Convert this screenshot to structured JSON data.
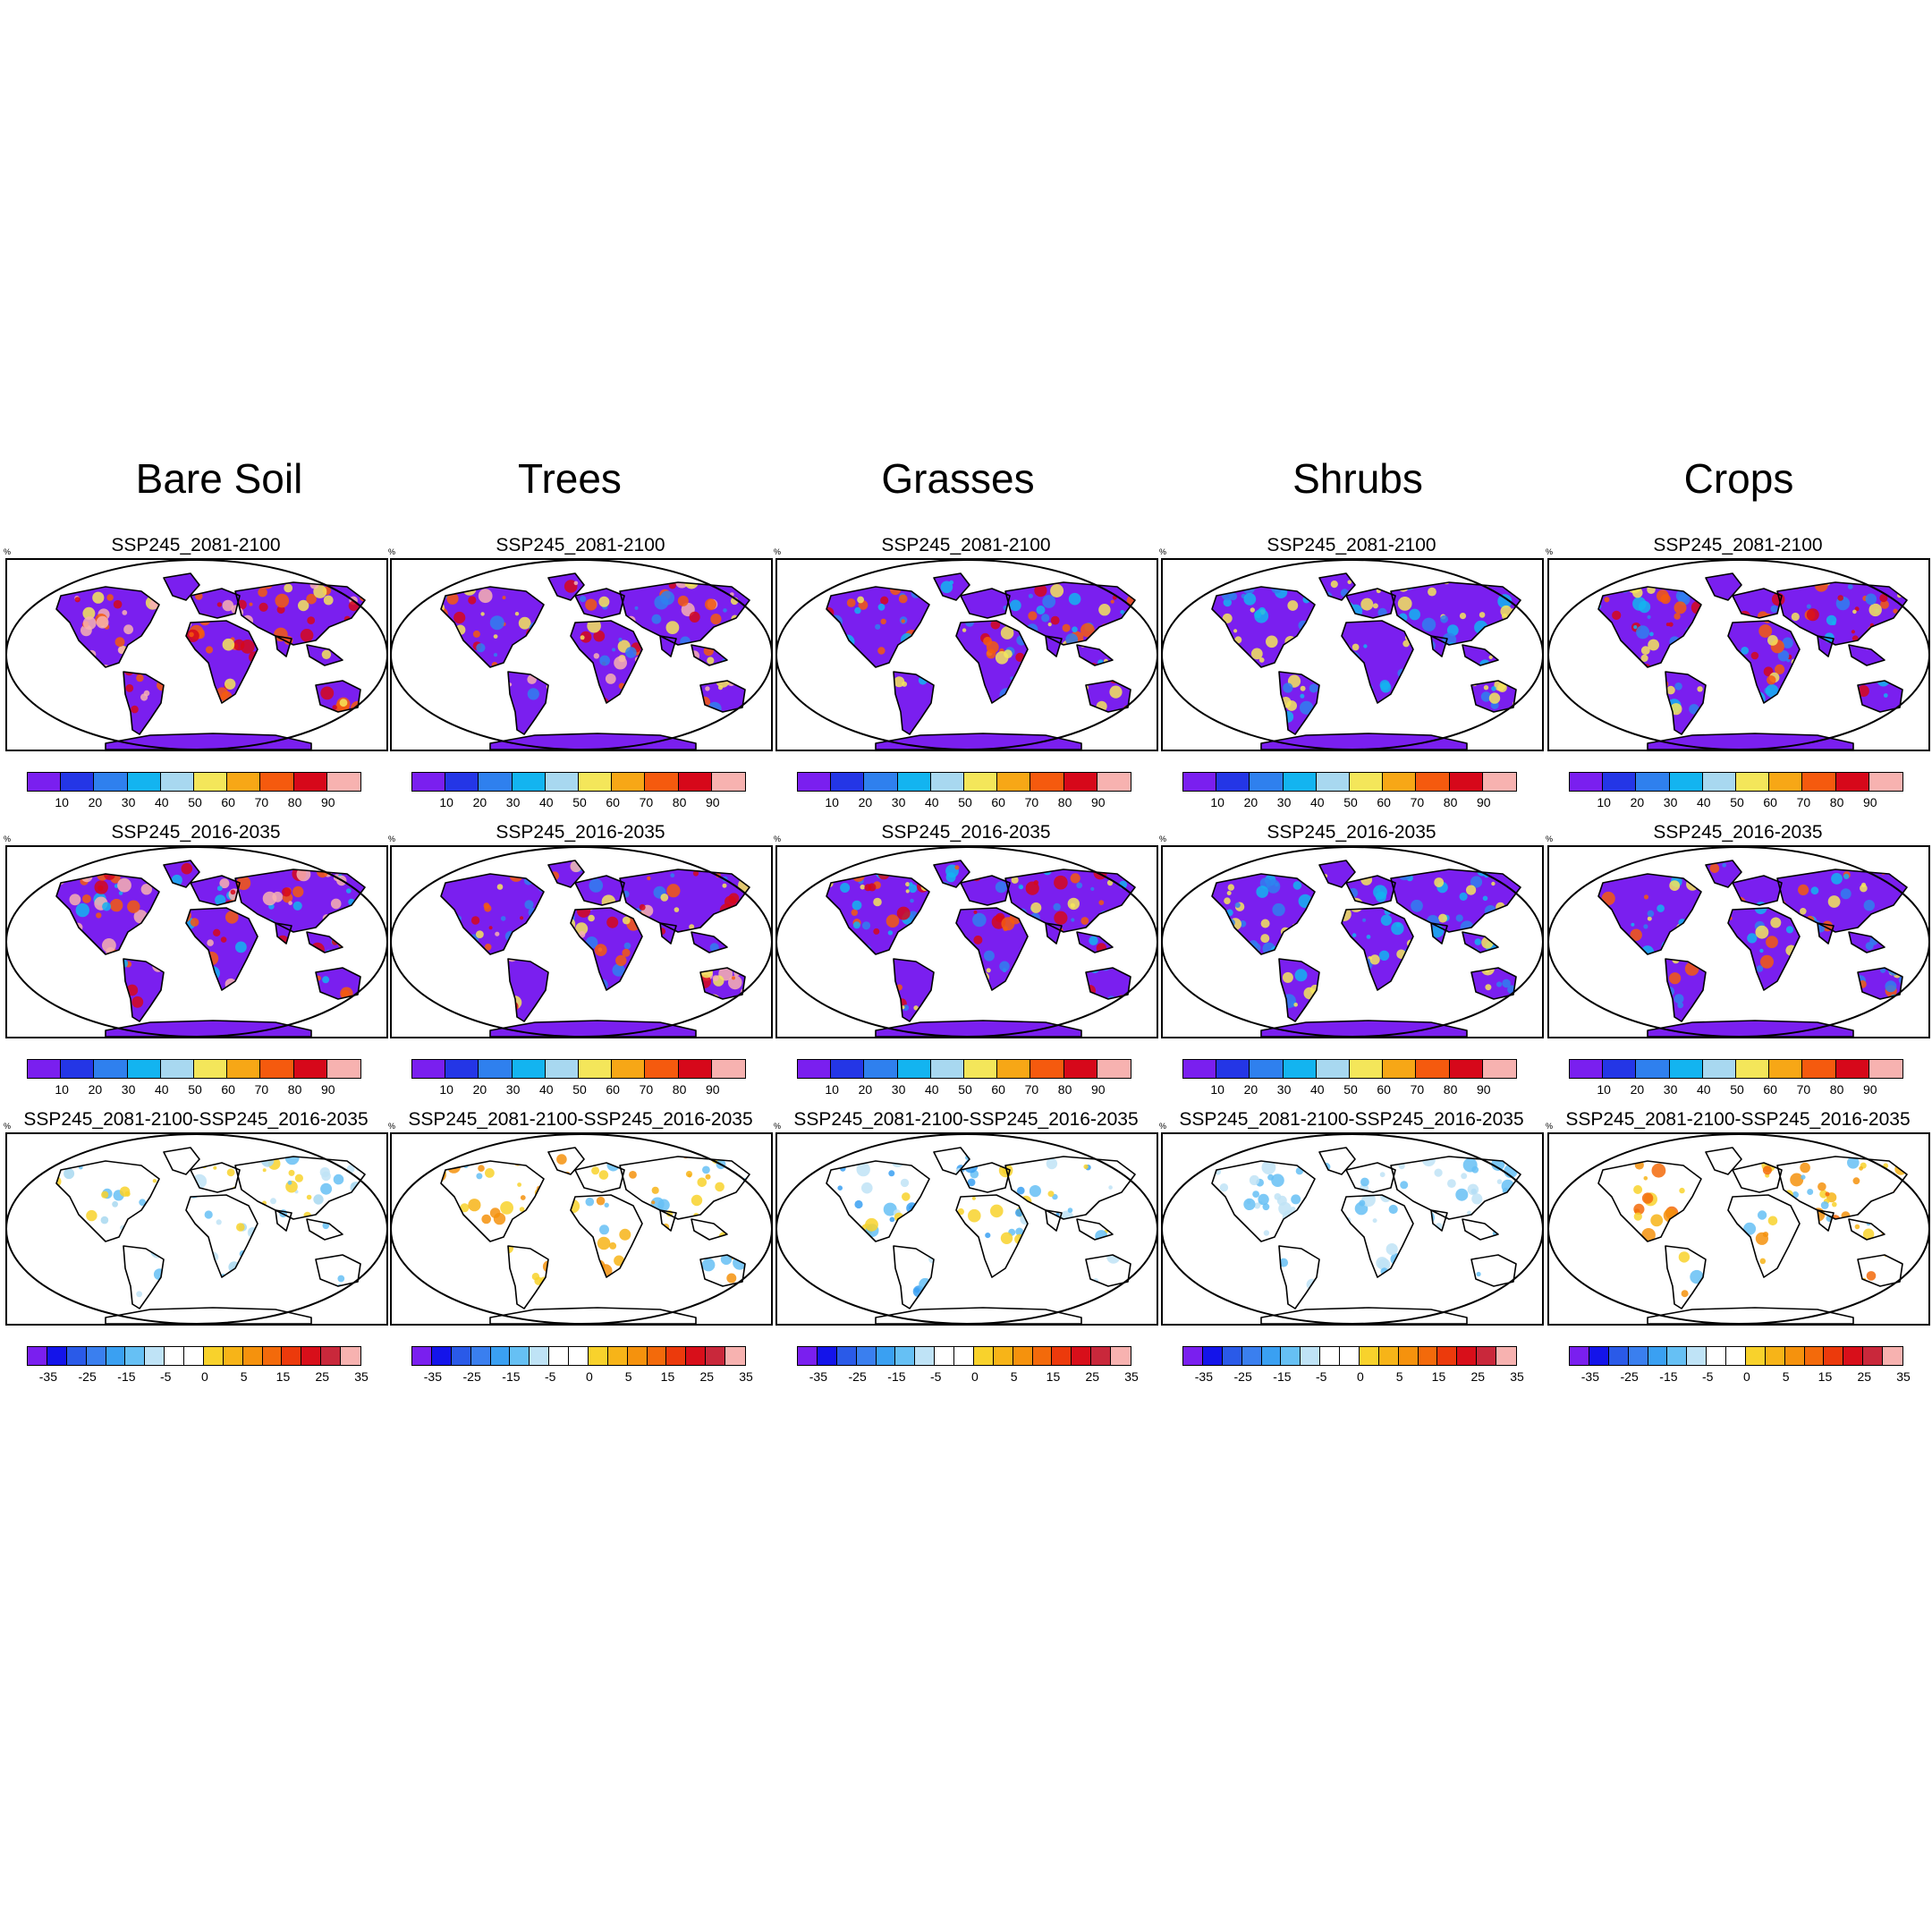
{
  "columns": [
    {
      "title": "Bare Soil",
      "key": "bare"
    },
    {
      "title": "Trees",
      "key": "trees"
    },
    {
      "title": "Grasses",
      "key": "grass"
    },
    {
      "title": "Shrubs",
      "key": "shrub"
    },
    {
      "title": "Crops",
      "key": "crops"
    }
  ],
  "rows": [
    {
      "panel_title": "SSP245_2081-2100",
      "type": "absolute"
    },
    {
      "panel_title": "SSP245_2016-2035",
      "type": "absolute"
    },
    {
      "panel_title": "SSP245_2081-2100-SSP245_2016-2035",
      "type": "difference"
    }
  ],
  "unit_label": "%",
  "colorbars": {
    "absolute": {
      "colors": [
        "#7a1fef",
        "#2436e6",
        "#2f80ee",
        "#13b4f0",
        "#a8d8f0",
        "#f4e65a",
        "#f7a716",
        "#f55a0e",
        "#d6081a",
        "#f7b2b0"
      ],
      "tick_labels": [
        "10",
        "20",
        "30",
        "40",
        "50",
        "60",
        "70",
        "80",
        "90"
      ]
    },
    "difference": {
      "colors": [
        "#7a1fef",
        "#1414ea",
        "#2a5ae8",
        "#3a7fef",
        "#3aa0f2",
        "#66c0f4",
        "#bfe3f6",
        "#ffffff",
        "#ffffff",
        "#f8d22c",
        "#f7b418",
        "#f5920d",
        "#f36a0b",
        "#ec3a0c",
        "#d80f1a",
        "#c9283b",
        "#f7b2b0"
      ],
      "tick_labels": [
        "-35",
        "-25",
        "-15",
        "-5",
        "0",
        "5",
        "15",
        "25",
        "35"
      ]
    }
  },
  "maps": {
    "bare": {
      "r0": {
        "base": "#7a1fef",
        "hot": [
          "#f7b2b0",
          "#d6081a",
          "#f55a0e",
          "#f4e65a"
        ]
      },
      "r1": {
        "base": "#7a1fef",
        "hot": [
          "#f7b2b0",
          "#d6081a",
          "#f55a0e",
          "#13b4f0"
        ]
      },
      "r2": {
        "hot": [
          "#a8d8f0",
          "#bfe3f6",
          "#66c0f4",
          "#f8d22c"
        ]
      }
    },
    "trees": {
      "r0": {
        "base": "#7a1fef",
        "hot": [
          "#f7b2b0",
          "#d6081a",
          "#f55a0e",
          "#f4e65a",
          "#2f80ee"
        ]
      },
      "r1": {
        "base": "#7a1fef",
        "hot": [
          "#f7b2b0",
          "#d6081a",
          "#f55a0e",
          "#f4e65a",
          "#2f80ee"
        ]
      },
      "r2": {
        "hot": [
          "#f7b418",
          "#f5920d",
          "#f8d22c",
          "#66c0f4"
        ]
      }
    },
    "grass": {
      "r0": {
        "base": "#7a1fef",
        "hot": [
          "#13b4f0",
          "#2f80ee",
          "#f4e65a",
          "#f55a0e",
          "#d6081a"
        ]
      },
      "r1": {
        "base": "#7a1fef",
        "hot": [
          "#13b4f0",
          "#2f80ee",
          "#f4e65a",
          "#f55a0e",
          "#d6081a"
        ]
      },
      "r2": {
        "hot": [
          "#3aa0f2",
          "#66c0f4",
          "#bfe3f6",
          "#f8d22c"
        ]
      }
    },
    "shrub": {
      "r0": {
        "base": "#7a1fef",
        "hot": [
          "#13b4f0",
          "#2f80ee",
          "#f4e65a"
        ]
      },
      "r1": {
        "base": "#7a1fef",
        "hot": [
          "#13b4f0",
          "#2f80ee",
          "#f4e65a"
        ]
      },
      "r2": {
        "hot": [
          "#bfe3f6",
          "#66c0f4"
        ]
      }
    },
    "crops": {
      "r0": {
        "base": "#7a1fef",
        "hot": [
          "#f55a0e",
          "#f4e65a",
          "#13b4f0",
          "#2f80ee",
          "#d6081a"
        ]
      },
      "r1": {
        "base": "#7a1fef",
        "hot": [
          "#f55a0e",
          "#f4e65a",
          "#13b4f0",
          "#2f80ee"
        ]
      },
      "r2": {
        "hot": [
          "#f7b418",
          "#f5920d",
          "#f8d22c",
          "#f36a0b",
          "#66c0f4"
        ]
      }
    }
  }
}
